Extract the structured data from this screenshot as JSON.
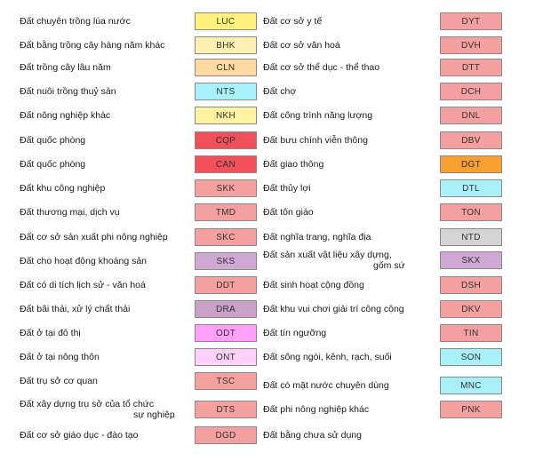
{
  "left": [
    {
      "label": "Đất chuyên trồng lúa nước",
      "code": "LUC",
      "color": "#fff27a"
    },
    {
      "label": "Đất bằng trồng cây hàng năm khác",
      "code": "BHK",
      "color": "#fff0b0"
    },
    {
      "label": "Đất trồng cây lâu năm",
      "code": "CLN",
      "color": "#ffd9a0"
    },
    {
      "label": "Đất nuôi trồng thuỷ sản",
      "code": "NTS",
      "color": "#a8f0f8"
    },
    {
      "label": "Đất nông nghiệp khác",
      "code": "NKH",
      "color": "#fff3a0"
    },
    {
      "label": "Đất quốc phòng",
      "code": "CQP",
      "color": "#f0505a"
    },
    {
      "label": "Đất quốc phòng",
      "code": "CAN",
      "color": "#f0505a"
    },
    {
      "label": "Đất khu công nghiệp",
      "code": "SKK",
      "color": "#f4a0a0"
    },
    {
      "label": "Đất thương mại, dịch vụ",
      "code": "TMD",
      "color": "#f4a0a0"
    },
    {
      "label": "Đất cơ sở sản xuất phi nông nghiệp",
      "code": "SKC",
      "color": "#f4a0a0"
    },
    {
      "label": "Đất cho hoạt động khoáng sản",
      "code": "SKS",
      "color": "#d0a8d4"
    },
    {
      "label": "Đất có di tích lịch sử - văn hoá",
      "code": "DDT",
      "color": "#f4a0a0"
    },
    {
      "label": "Đất bãi thải, xử lý chất thải",
      "code": "DRA",
      "color": "#c8a0c8"
    },
    {
      "label": "Đất ở tại đô thị",
      "code": "ODT",
      "color": "#ffa0f8"
    },
    {
      "label": "Đất ở tại nông thôn",
      "code": "ONT",
      "color": "#ffd0f8"
    },
    {
      "label": "Đất trụ sở cơ quan",
      "code": "TSC",
      "color": "#f4a0a0"
    },
    {
      "label": "Đất xây dựng trụ sở của tổ chức",
      "label2": "sự nghiệp",
      "code": "DTS",
      "color": "#f4a0a0"
    },
    {
      "label": "Đất cơ sở giáo dục - đào tạo",
      "code": "DGD",
      "color": "#f4a0a0"
    }
  ],
  "right": [
    {
      "label": "Đất cơ sở y tế",
      "code": "DYT",
      "color": "#f4a0a0"
    },
    {
      "label": "Đất cơ sở văn hoá",
      "code": "DVH",
      "color": "#f4a0a0"
    },
    {
      "label": "Đất cơ sở thể dục - thể thao",
      "code": "DTT",
      "color": "#f4a0a0"
    },
    {
      "label": "Đất chợ",
      "code": "DCH",
      "color": "#f4a0a0"
    },
    {
      "label": "Đất công trình năng lượng",
      "code": "DNL",
      "color": "#f4a0a0"
    },
    {
      "label": "Đất bưu chính viễn thông",
      "code": "DBV",
      "color": "#f4a0a0"
    },
    {
      "label": "Đất giao thông",
      "code": "DGT",
      "color": "#f7a030"
    },
    {
      "label": "Đất thủy lợi",
      "code": "DTL",
      "color": "#a8f0f8"
    },
    {
      "label": "Đất tôn giáo",
      "code": "TON",
      "color": "#f4a0a0"
    },
    {
      "label": "Đất nghĩa trang, nghĩa địa",
      "code": "NTD",
      "color": "#d4d4d4"
    },
    {
      "label": "Đất sản xuất vật liệu xây dựng,",
      "label2": "gốm sứ",
      "code": "SKX",
      "color": "#d0a8d4"
    },
    {
      "label": "Đất sinh hoạt cộng đồng",
      "code": "DSH",
      "color": "#f4a0a0"
    },
    {
      "label": "Đất khu vui chơi giải trí công cộng",
      "code": "DKV",
      "color": "#f4a0a0"
    },
    {
      "label": "Đất tín ngưỡng",
      "code": "TIN",
      "color": "#f4a0a0"
    },
    {
      "label": "Đất sông ngòi, kênh, rạch, suối",
      "code": "SON",
      "color": "#a8f0f8"
    },
    {
      "label": "Đất có mặt nước chuyên dùng",
      "code": "MNC",
      "color": "#a8f0f8"
    },
    {
      "label": "Đất phi nông nghiệp khác",
      "code": "PNK",
      "color": "#f4a0a0"
    },
    {
      "label": "Đất bằng chưa sử dụng",
      "code": "",
      "color": "#ffffff"
    }
  ]
}
